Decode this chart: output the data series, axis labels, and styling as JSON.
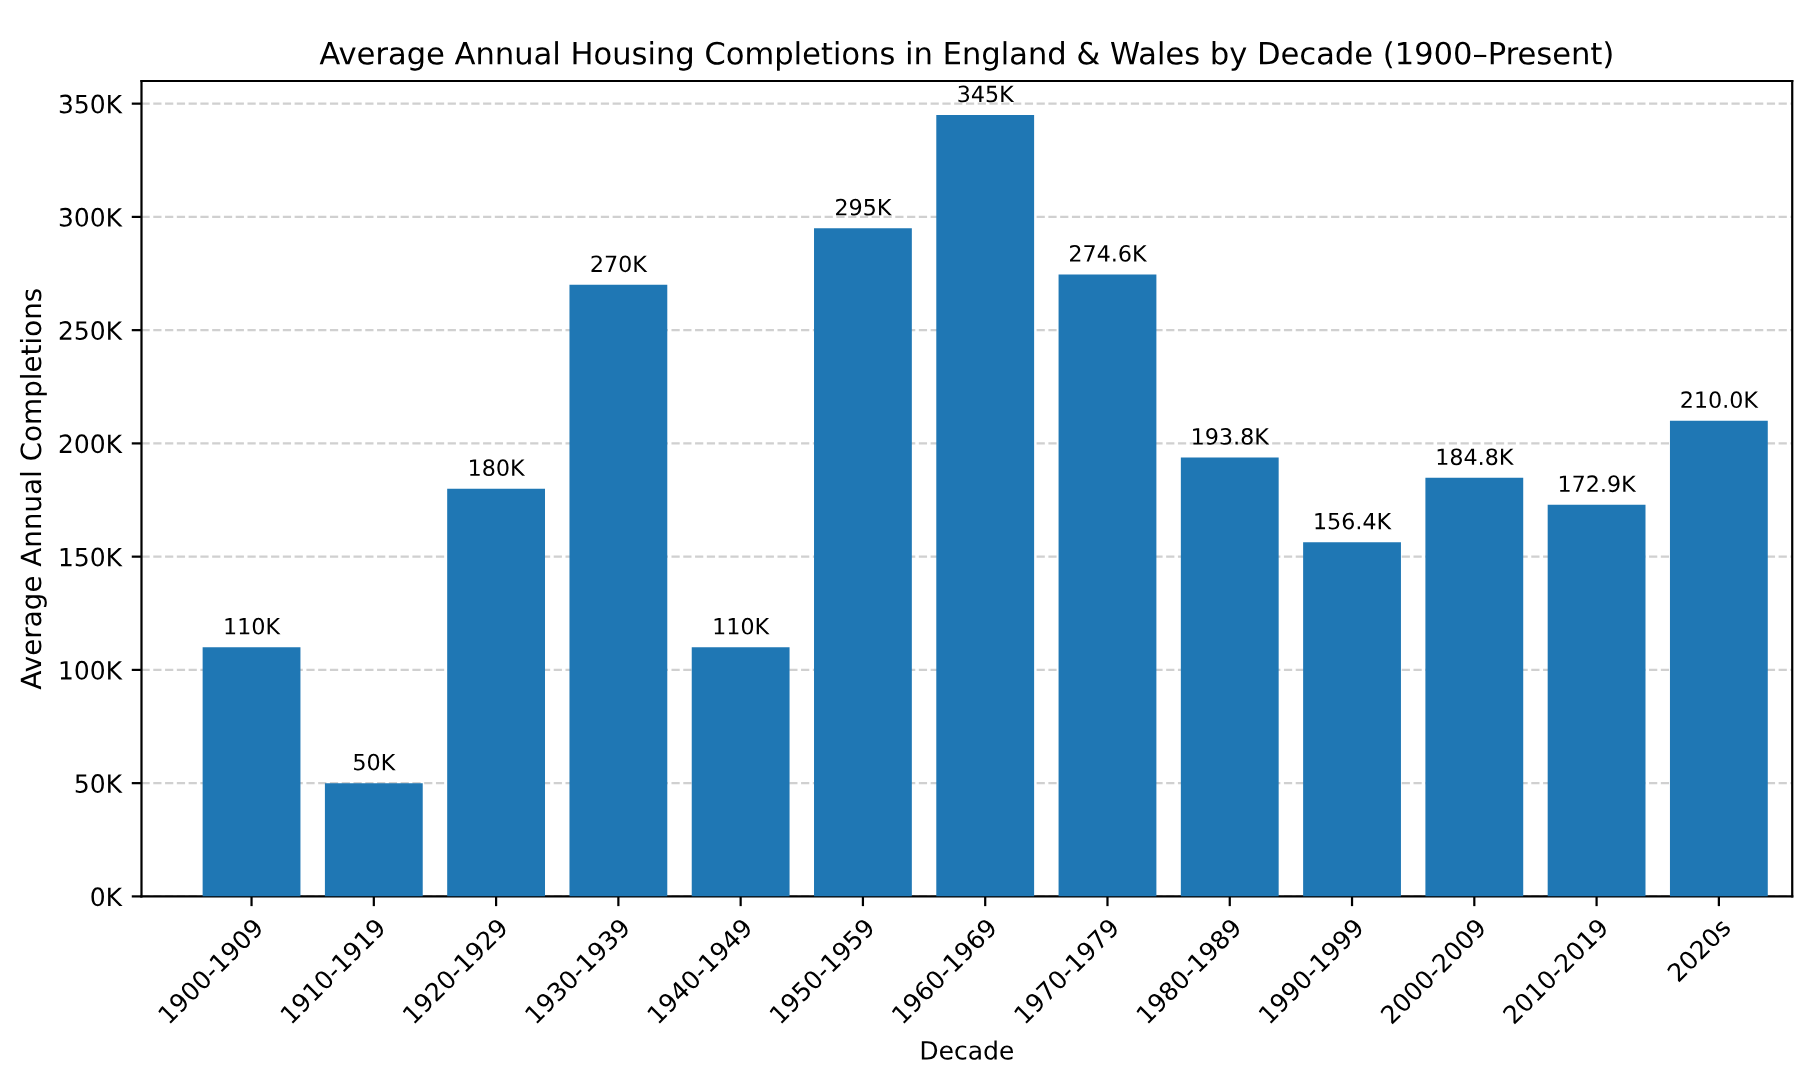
{
  "chart_data": {
    "type": "bar",
    "title": "Average Annual Housing Completions in England & Wales by Decade (1900–Present)",
    "xlabel": "Decade",
    "ylabel": "Average Annual Completions",
    "categories": [
      "1900-1909",
      "1910-1919",
      "1920-1929",
      "1930-1939",
      "1940-1949",
      "1950-1959",
      "1960-1969",
      "1970-1979",
      "1980-1989",
      "1990-1999",
      "2000-2009",
      "2010-2019",
      "2020s"
    ],
    "values": [
      110000,
      50000,
      180000,
      270000,
      110000,
      295000,
      345000,
      274600,
      193800,
      156400,
      184800,
      172900,
      210000
    ],
    "value_labels": [
      "110K",
      "50K",
      "180K",
      "270K",
      "110K",
      "295K",
      "345K",
      "274.6K",
      "193.8K",
      "156.4K",
      "184.8K",
      "172.9K",
      "210.0K"
    ],
    "color": "#1f77b4",
    "ylim": [
      0,
      360000
    ],
    "yticks": [
      {
        "value": 0,
        "label": "0K"
      },
      {
        "value": 50000,
        "label": "50K"
      },
      {
        "value": 100000,
        "label": "100K"
      },
      {
        "value": 150000,
        "label": "150K"
      },
      {
        "value": 200000,
        "label": "200K"
      },
      {
        "value": 250000,
        "label": "250K"
      },
      {
        "value": 300000,
        "label": "300K"
      },
      {
        "value": 350000,
        "label": "350K"
      }
    ],
    "grid": "y"
  }
}
